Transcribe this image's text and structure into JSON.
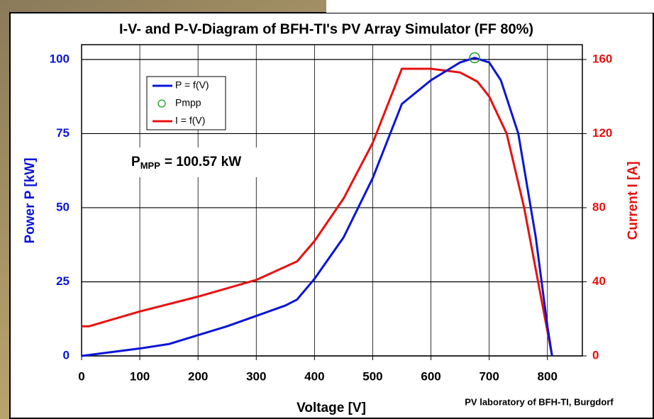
{
  "chart_data": {
    "type": "line",
    "title": "I-V- and P-V-Diagram of BFH-TI's PV Array Simulator (FF 80%)",
    "x_label": "Voltage [V]",
    "y_label": "Power P [kW]",
    "y2_label": "Current I [A]",
    "footnote": "PV laboratory of BFH-TI, Burgdorf",
    "annotation": {
      "text": "P",
      "subscript": "MPP",
      "value_text": "= 100.57  kW"
    },
    "xlim": [
      0,
      860
    ],
    "xticks": [
      0,
      100,
      200,
      300,
      400,
      500,
      600,
      700,
      800
    ],
    "ylim": [
      0,
      105
    ],
    "yticks": [
      0,
      25,
      50,
      75,
      100
    ],
    "y2lim": [
      0,
      168
    ],
    "y2ticks": [
      0,
      40,
      80,
      120,
      160
    ],
    "grid": true,
    "series": [
      {
        "name": "P = f(V)",
        "color": "#0a14d8",
        "axis": "y",
        "x": [
          0,
          100,
          150,
          200,
          250,
          300,
          350,
          370,
          400,
          450,
          500,
          550,
          600,
          650,
          675,
          700,
          720,
          750,
          780,
          800,
          808
        ],
        "values": [
          0,
          2.5,
          4,
          7,
          10,
          13.5,
          17,
          19,
          26,
          40,
          60,
          85,
          93,
          99,
          100.57,
          99,
          93,
          75,
          40,
          10,
          0
        ]
      },
      {
        "name": "Pmpp",
        "color": "#1a9a1a",
        "axis": "y",
        "marker": "circle",
        "x": [
          675
        ],
        "values": [
          100.57
        ]
      },
      {
        "name": "I = f(V)",
        "color": "#e81010",
        "axis": "y2",
        "x": [
          0,
          13,
          100,
          200,
          300,
          370,
          400,
          450,
          500,
          550,
          600,
          650,
          680,
          700,
          730,
          760,
          790,
          808
        ],
        "values": [
          16,
          16,
          24,
          32,
          41,
          51,
          62,
          85,
          115,
          155,
          155,
          153,
          148,
          140,
          120,
          80,
          30,
          0
        ]
      }
    ]
  }
}
